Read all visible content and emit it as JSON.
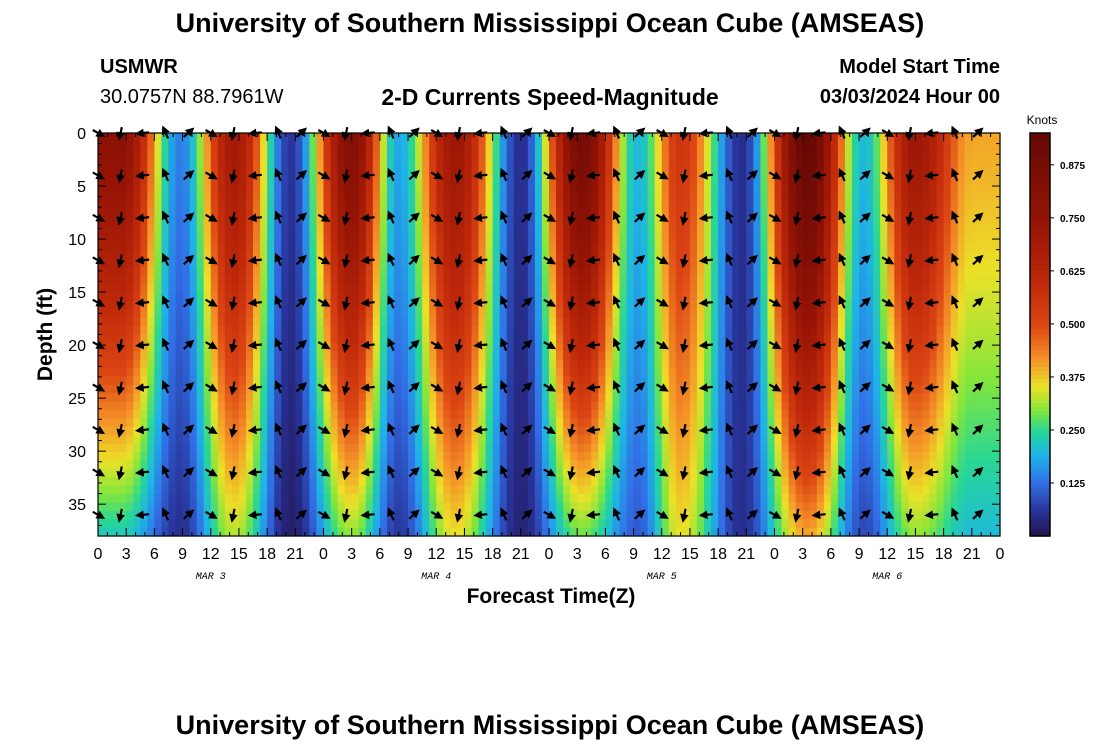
{
  "header": {
    "title": "University of Southern Mississippi Ocean Cube (AMSEAS)",
    "station": "USMWR",
    "coords": "30.0757N  88.7961W",
    "chart_title": "2-D Currents Speed-Magnitude",
    "model_label": "Model Start Time",
    "model_time": "03/03/2024 Hour 00"
  },
  "footer": {
    "title": "University of Southern Mississippi Ocean Cube (AMSEAS)"
  },
  "chart_data": {
    "type": "heatmap",
    "title": "2-D Currents Speed-Magnitude",
    "xlabel": "Forecast Time(Z)",
    "ylabel": "Depth (ft)",
    "x_unit": "hours since 03/03/2024 00Z",
    "xlim": [
      0,
      96
    ],
    "ylim": [
      0,
      38
    ],
    "x_ticks": [
      0,
      3,
      6,
      9,
      12,
      15,
      18,
      21,
      24,
      27,
      30,
      33,
      36,
      39,
      42,
      45,
      48,
      51,
      54,
      57,
      60,
      63,
      66,
      69,
      72,
      75,
      78,
      81,
      84,
      87,
      90,
      93,
      96
    ],
    "x_tick_labels": [
      "0",
      "3",
      "6",
      "9",
      "12",
      "15",
      "18",
      "21",
      "0",
      "3",
      "6",
      "9",
      "12",
      "15",
      "18",
      "21",
      "0",
      "3",
      "6",
      "9",
      "12",
      "15",
      "18",
      "21",
      "0",
      "3",
      "6",
      "9",
      "12",
      "15",
      "18",
      "21",
      "0"
    ],
    "day_labels": [
      {
        "hour": 12,
        "label": "MAR 3"
      },
      {
        "hour": 36,
        "label": "MAR 4"
      },
      {
        "hour": 60,
        "label": "MAR 5"
      },
      {
        "hour": 84,
        "label": "MAR 6"
      }
    ],
    "y_ticks": [
      0,
      5,
      10,
      15,
      20,
      25,
      30,
      35
    ],
    "colorbar": {
      "label": "Knots",
      "min": 0.0,
      "max": 0.95,
      "ticks": [
        0.125,
        0.25,
        0.375,
        0.5,
        0.625,
        0.75,
        0.875
      ],
      "tick_labels": [
        "0.125",
        "0.250",
        "0.375",
        "0.500",
        "0.625",
        "0.750",
        "0.875"
      ]
    },
    "speed_peaks": [
      {
        "hour": 2.5,
        "surface": 0.78,
        "bottom": 0.22
      },
      {
        "hour": 8.8,
        "surface": 0.14,
        "bottom": 0.05
      },
      {
        "hour": 14.5,
        "surface": 0.7,
        "bottom": 0.32
      },
      {
        "hour": 20.5,
        "surface": 0.06,
        "bottom": 0.02
      },
      {
        "hour": 27.0,
        "surface": 0.82,
        "bottom": 0.3
      },
      {
        "hour": 32.0,
        "surface": 0.18,
        "bottom": 0.06
      },
      {
        "hour": 38.0,
        "surface": 0.72,
        "bottom": 0.35
      },
      {
        "hour": 45.0,
        "surface": 0.05,
        "bottom": 0.03
      },
      {
        "hour": 51.5,
        "surface": 0.88,
        "bottom": 0.28
      },
      {
        "hour": 57.5,
        "surface": 0.2,
        "bottom": 0.1
      },
      {
        "hour": 62.0,
        "surface": 0.55,
        "bottom": 0.35
      },
      {
        "hour": 68.5,
        "surface": 0.05,
        "bottom": 0.05
      },
      {
        "hour": 75.5,
        "surface": 0.95,
        "bottom": 0.4
      },
      {
        "hour": 81.5,
        "surface": 0.2,
        "bottom": 0.08
      },
      {
        "hour": 87.0,
        "surface": 0.72,
        "bottom": 0.3
      },
      {
        "hour": 93.0,
        "surface": 0.4,
        "bottom": 0.2
      }
    ]
  }
}
